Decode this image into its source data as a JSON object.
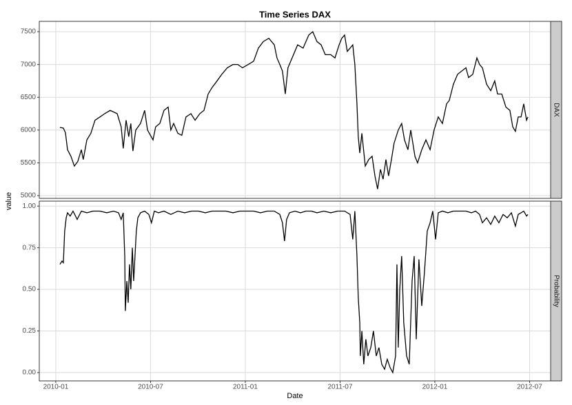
{
  "chart_data": {
    "type": "line",
    "title": "Time Series DAX",
    "x_label": "Date",
    "y_label": "value",
    "xlim": [
      2009.913,
      2012.611
    ],
    "xticks": [
      {
        "value": 2010.0,
        "label": "2010-01"
      },
      {
        "value": 2010.5,
        "label": "2010-07"
      },
      {
        "value": 2011.0,
        "label": "2011-01"
      },
      {
        "value": 2011.5,
        "label": "2011-07"
      },
      {
        "value": 2012.0,
        "label": "2012-01"
      },
      {
        "value": 2012.5,
        "label": "2012-07"
      }
    ],
    "grid": true,
    "color": "#000000",
    "panels": [
      {
        "label": "DAX",
        "ylim": [
          4958,
          7658
        ],
        "yticks": [
          5000,
          5500,
          6000,
          6500,
          7000,
          7500
        ],
        "x": [
          2010.022,
          2010.04,
          2010.051,
          2010.062,
          2010.08,
          2010.098,
          2010.116,
          2010.135,
          2010.145,
          2010.164,
          2010.185,
          2010.207,
          2010.233,
          2010.258,
          2010.287,
          2010.324,
          2010.345,
          2010.356,
          2010.371,
          2010.385,
          2010.396,
          2010.407,
          2010.422,
          2010.447,
          2010.469,
          2010.484,
          2010.513,
          2010.527,
          2010.549,
          2010.571,
          2010.593,
          2010.607,
          2010.622,
          2010.644,
          2010.665,
          2010.687,
          2010.713,
          2010.735,
          2010.76,
          2010.782,
          2010.804,
          2010.825,
          2010.851,
          2010.876,
          2010.905,
          2010.935,
          2010.96,
          2010.985,
          2011.015,
          2011.044,
          2011.069,
          2011.095,
          2011.124,
          2011.153,
          2011.167,
          2011.182,
          2011.196,
          2011.211,
          2011.225,
          2011.247,
          2011.276,
          2011.305,
          2011.335,
          2011.356,
          2011.378,
          2011.4,
          2011.422,
          2011.451,
          2011.473,
          2011.495,
          2011.509,
          2011.524,
          2011.538,
          2011.553,
          2011.567,
          2011.578,
          2011.589,
          2011.596,
          2011.604,
          2011.615,
          2011.633,
          2011.651,
          2011.669,
          2011.684,
          2011.698,
          2011.713,
          2011.727,
          2011.742,
          2011.756,
          2011.771,
          2011.785,
          2011.807,
          2011.825,
          2011.84,
          2011.858,
          2011.873,
          2011.895,
          2011.909,
          2011.931,
          2011.953,
          2011.975,
          2011.996,
          2012.018,
          2012.04,
          2012.062,
          2012.076,
          2012.098,
          2012.12,
          2012.142,
          2012.164,
          2012.178,
          2012.2,
          2012.222,
          2012.236,
          2012.251,
          2012.273,
          2012.295,
          2012.316,
          2012.331,
          2012.353,
          2012.375,
          2012.396,
          2012.411,
          2012.425,
          2012.44,
          2012.455,
          2012.469,
          2012.484,
          2012.491
        ],
        "values": [
          6040,
          6030,
          5960,
          5700,
          5600,
          5450,
          5520,
          5700,
          5550,
          5850,
          5950,
          6150,
          6200,
          6250,
          6300,
          6250,
          6050,
          5720,
          6150,
          5900,
          6100,
          5680,
          6000,
          6100,
          6300,
          6000,
          5850,
          6050,
          6100,
          6300,
          6350,
          6000,
          6100,
          5950,
          5920,
          6200,
          6250,
          6150,
          6250,
          6300,
          6550,
          6650,
          6750,
          6850,
          6950,
          7000,
          7000,
          6950,
          7000,
          7050,
          7250,
          7350,
          7400,
          7300,
          7100,
          7000,
          6900,
          6550,
          6950,
          7100,
          7300,
          7250,
          7450,
          7500,
          7350,
          7300,
          7150,
          7150,
          7100,
          7300,
          7400,
          7450,
          7200,
          7250,
          7300,
          7000,
          6400,
          5900,
          5650,
          5950,
          5450,
          5550,
          5600,
          5300,
          5100,
          5400,
          5250,
          5550,
          5300,
          5550,
          5800,
          6000,
          6100,
          5850,
          5700,
          6000,
          5600,
          5500,
          5700,
          5850,
          5700,
          6000,
          6200,
          6100,
          6400,
          6450,
          6700,
          6850,
          6900,
          6950,
          6800,
          6850,
          7100,
          7000,
          6950,
          6700,
          6600,
          6750,
          6550,
          6550,
          6350,
          6300,
          6050,
          5980,
          6200,
          6200,
          6400,
          6150,
          6200
        ]
      },
      {
        "label": "Probability",
        "ylim": [
          -0.05,
          1.03
        ],
        "yticks": [
          {
            "value": 0,
            "label": "0.00"
          },
          {
            "value": 0.25,
            "label": "0.25"
          },
          {
            "value": 0.5,
            "label": "0.50"
          },
          {
            "value": 0.75,
            "label": "0.75"
          },
          {
            "value": 1,
            "label": "1.00"
          }
        ],
        "x": [
          2010.022,
          2010.033,
          2010.04,
          2010.047,
          2010.055,
          2010.062,
          2010.076,
          2010.091,
          2010.113,
          2010.135,
          2010.164,
          2010.196,
          2010.233,
          2010.269,
          2010.305,
          2010.331,
          2010.345,
          2010.356,
          2010.364,
          2010.367,
          2010.375,
          2010.382,
          2010.389,
          2010.396,
          2010.404,
          2010.411,
          2010.418,
          2010.425,
          2010.433,
          2010.447,
          2010.469,
          2010.491,
          2010.505,
          2010.52,
          2010.542,
          2010.571,
          2010.607,
          2010.644,
          2010.68,
          2010.716,
          2010.753,
          2010.789,
          2010.825,
          2010.862,
          2010.898,
          2010.935,
          2010.971,
          2011.007,
          2011.044,
          2011.08,
          2011.116,
          2011.153,
          2011.182,
          2011.196,
          2011.207,
          2011.218,
          2011.233,
          2011.262,
          2011.291,
          2011.32,
          2011.349,
          2011.378,
          2011.415,
          2011.451,
          2011.487,
          2011.524,
          2011.553,
          2011.567,
          2011.578,
          2011.589,
          2011.596,
          2011.604,
          2011.607,
          2011.615,
          2011.625,
          2011.636,
          2011.647,
          2011.662,
          2011.676,
          2011.691,
          2011.705,
          2011.72,
          2011.735,
          2011.749,
          2011.764,
          2011.778,
          2011.793,
          2011.8,
          2011.807,
          2011.815,
          2011.825,
          2011.836,
          2011.851,
          2011.865,
          2011.88,
          2011.891,
          2011.902,
          2011.916,
          2011.931,
          2011.945,
          2011.96,
          2011.975,
          2011.989,
          2012.004,
          2012.018,
          2012.04,
          2012.069,
          2012.098,
          2012.135,
          2012.164,
          2012.193,
          2012.215,
          2012.236,
          2012.251,
          2012.273,
          2012.295,
          2012.316,
          2012.338,
          2012.36,
          2012.382,
          2012.404,
          2012.425,
          2012.44,
          2012.455,
          2012.469,
          2012.484,
          2012.491
        ],
        "values": [
          0.65,
          0.67,
          0.66,
          0.85,
          0.93,
          0.96,
          0.94,
          0.97,
          0.92,
          0.97,
          0.96,
          0.97,
          0.97,
          0.96,
          0.97,
          0.96,
          0.92,
          0.96,
          0.7,
          0.37,
          0.55,
          0.42,
          0.65,
          0.5,
          0.75,
          0.55,
          0.7,
          0.85,
          0.93,
          0.96,
          0.97,
          0.95,
          0.9,
          0.97,
          0.96,
          0.97,
          0.95,
          0.97,
          0.96,
          0.97,
          0.97,
          0.96,
          0.97,
          0.97,
          0.97,
          0.96,
          0.97,
          0.97,
          0.97,
          0.96,
          0.97,
          0.97,
          0.95,
          0.9,
          0.79,
          0.92,
          0.96,
          0.97,
          0.96,
          0.97,
          0.97,
          0.96,
          0.97,
          0.96,
          0.97,
          0.97,
          0.95,
          0.8,
          0.97,
          0.7,
          0.45,
          0.3,
          0.1,
          0.25,
          0.05,
          0.2,
          0.1,
          0.15,
          0.25,
          0.1,
          0.15,
          0.05,
          0.02,
          0.08,
          0.03,
          0.0,
          0.1,
          0.65,
          0.15,
          0.5,
          0.7,
          0.3,
          0.1,
          0.05,
          0.55,
          0.7,
          0.2,
          0.68,
          0.4,
          0.6,
          0.85,
          0.9,
          0.97,
          0.8,
          0.96,
          0.97,
          0.96,
          0.97,
          0.97,
          0.97,
          0.96,
          0.97,
          0.95,
          0.9,
          0.93,
          0.89,
          0.94,
          0.9,
          0.95,
          0.93,
          0.96,
          0.88,
          0.95,
          0.96,
          0.97,
          0.94,
          0.95
        ]
      }
    ]
  }
}
